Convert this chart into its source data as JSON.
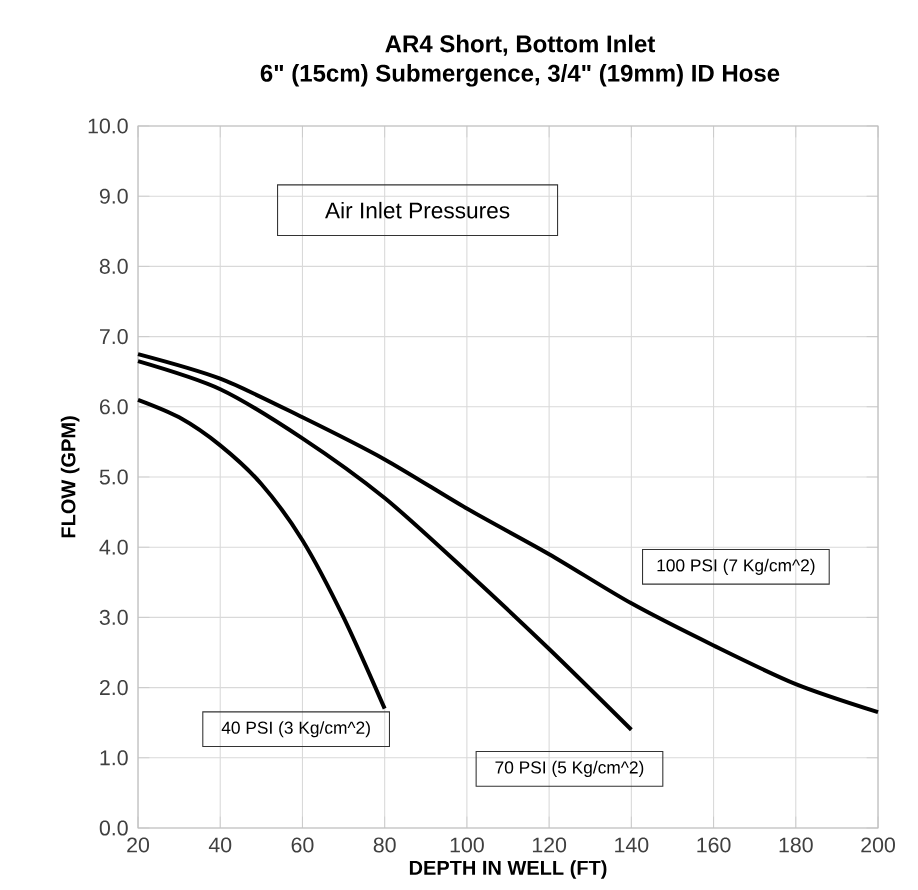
{
  "chart_data": {
    "type": "line",
    "title": "AR4 Short, Bottom Inlet",
    "subtitle": "6\" (15cm) Submergence, 3/4\" (19mm) ID Hose",
    "xlabel": "DEPTH IN WELL (FT)",
    "ylabel": "FLOW (GPM)",
    "xlim": [
      20,
      200
    ],
    "xticks": [
      20,
      40,
      60,
      80,
      100,
      120,
      140,
      160,
      180,
      200
    ],
    "ylim": [
      0,
      10
    ],
    "yticks": [
      {
        "value": 0,
        "label": "0.0"
      },
      {
        "value": 1,
        "label": "1.0"
      },
      {
        "value": 2,
        "label": "2.0"
      },
      {
        "value": 3,
        "label": "3.0"
      },
      {
        "value": 4,
        "label": "4.0"
      },
      {
        "value": 5,
        "label": "5.0"
      },
      {
        "value": 6,
        "label": "6.0"
      },
      {
        "value": 7,
        "label": "7.0"
      },
      {
        "value": 8,
        "label": "8.0"
      },
      {
        "value": 9,
        "label": "9.0"
      },
      {
        "value": 10,
        "label": "10.0"
      }
    ],
    "grid": true,
    "marker": "none",
    "line_style": "solid",
    "annotations": [
      "Air Inlet Pressures"
    ],
    "series": [
      {
        "name": "40 PSI (3 Kg/cm^2)",
        "color": "#000000",
        "x": [
          20,
          30,
          40,
          50,
          60,
          70,
          80
        ],
        "values": [
          6.1,
          5.85,
          5.45,
          4.9,
          4.1,
          3.0,
          1.7
        ]
      },
      {
        "name": "70 PSI (5 Kg/cm^2)",
        "color": "#000000",
        "x": [
          20,
          40,
          60,
          80,
          100,
          120,
          140
        ],
        "values": [
          6.65,
          6.25,
          5.55,
          4.7,
          3.65,
          2.55,
          1.4
        ]
      },
      {
        "name": "100 PSI (7 Kg/cm^2)",
        "color": "#000000",
        "x": [
          20,
          40,
          60,
          80,
          100,
          120,
          140,
          160,
          180,
          200
        ],
        "values": [
          6.75,
          6.4,
          5.85,
          5.25,
          4.55,
          3.9,
          3.2,
          2.6,
          2.05,
          1.65
        ]
      }
    ]
  }
}
